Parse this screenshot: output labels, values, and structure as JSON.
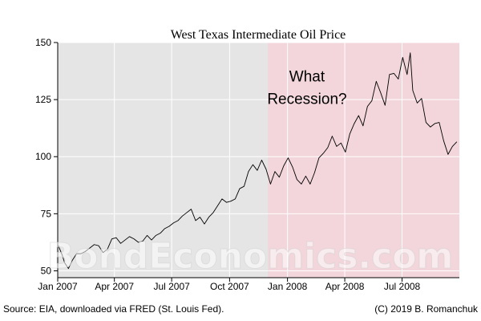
{
  "chart_data": {
    "type": "line",
    "title": "West Texas Intermediate Oil Price",
    "xlabel": "",
    "ylabel": "",
    "x_range": [
      "2007-01-01",
      "2008-09-30"
    ],
    "ylim": [
      47,
      150
    ],
    "y_ticks": [
      50,
      75,
      100,
      125,
      150
    ],
    "x_ticks": [
      {
        "date": "2007-01-01",
        "label": "Jan 2007"
      },
      {
        "date": "2007-04-01",
        "label": "Apr 2007"
      },
      {
        "date": "2007-07-01",
        "label": "Jul 2007"
      },
      {
        "date": "2007-10-01",
        "label": "Oct 2007"
      },
      {
        "date": "2008-01-01",
        "label": "Jan 2008"
      },
      {
        "date": "2008-04-01",
        "label": "Apr 2008"
      },
      {
        "date": "2008-07-01",
        "label": "Jul 2008"
      }
    ],
    "grid": true,
    "background_color": "#e5e5e5",
    "recession_shading": {
      "start": "2007-12-01",
      "end": "2008-09-30",
      "color": "#f2d6db"
    },
    "annotation": {
      "lines": [
        "What",
        "Recession?"
      ],
      "date": "2008-02-01",
      "value": 126
    },
    "series": [
      {
        "color": "#000000",
        "points": [
          [
            "2007-01-02",
            61.0
          ],
          [
            "2007-01-08",
            57.0
          ],
          [
            "2007-01-12",
            53.5
          ],
          [
            "2007-01-18",
            51.0
          ],
          [
            "2007-01-24",
            54.5
          ],
          [
            "2007-01-31",
            57.5
          ],
          [
            "2007-02-07",
            57.5
          ],
          [
            "2007-02-14",
            58.5
          ],
          [
            "2007-02-21",
            60.0
          ],
          [
            "2007-02-28",
            61.5
          ],
          [
            "2007-03-07",
            61.0
          ],
          [
            "2007-03-14",
            58.0
          ],
          [
            "2007-03-21",
            59.5
          ],
          [
            "2007-03-28",
            64.0
          ],
          [
            "2007-04-04",
            64.5
          ],
          [
            "2007-04-11",
            62.0
          ],
          [
            "2007-04-18",
            63.5
          ],
          [
            "2007-04-25",
            65.0
          ],
          [
            "2007-05-02",
            64.0
          ],
          [
            "2007-05-09",
            62.5
          ],
          [
            "2007-05-16",
            63.0
          ],
          [
            "2007-05-23",
            65.5
          ],
          [
            "2007-05-30",
            63.5
          ],
          [
            "2007-06-06",
            65.5
          ],
          [
            "2007-06-13",
            66.5
          ],
          [
            "2007-06-20",
            68.5
          ],
          [
            "2007-06-27",
            69.5
          ],
          [
            "2007-07-04",
            71.0
          ],
          [
            "2007-07-11",
            72.0
          ],
          [
            "2007-07-18",
            74.0
          ],
          [
            "2007-07-25",
            75.5
          ],
          [
            "2007-08-01",
            77.0
          ],
          [
            "2007-08-08",
            72.0
          ],
          [
            "2007-08-15",
            73.5
          ],
          [
            "2007-08-22",
            70.5
          ],
          [
            "2007-08-29",
            73.5
          ],
          [
            "2007-09-05",
            75.5
          ],
          [
            "2007-09-12",
            78.5
          ],
          [
            "2007-09-19",
            81.5
          ],
          [
            "2007-09-26",
            80.0
          ],
          [
            "2007-10-03",
            80.5
          ],
          [
            "2007-10-10",
            81.5
          ],
          [
            "2007-10-17",
            86.0
          ],
          [
            "2007-10-24",
            87.0
          ],
          [
            "2007-10-31",
            93.5
          ],
          [
            "2007-11-07",
            96.5
          ],
          [
            "2007-11-14",
            94.0
          ],
          [
            "2007-11-21",
            98.5
          ],
          [
            "2007-11-28",
            94.5
          ],
          [
            "2007-12-05",
            88.0
          ],
          [
            "2007-12-12",
            93.5
          ],
          [
            "2007-12-19",
            91.0
          ],
          [
            "2007-12-26",
            96.0
          ],
          [
            "2008-01-02",
            99.5
          ],
          [
            "2008-01-09",
            95.5
          ],
          [
            "2008-01-16",
            90.0
          ],
          [
            "2008-01-23",
            88.0
          ],
          [
            "2008-01-30",
            91.5
          ],
          [
            "2008-02-06",
            88.0
          ],
          [
            "2008-02-13",
            93.0
          ],
          [
            "2008-02-20",
            99.5
          ],
          [
            "2008-02-27",
            101.5
          ],
          [
            "2008-03-05",
            104.0
          ],
          [
            "2008-03-12",
            109.0
          ],
          [
            "2008-03-19",
            104.5
          ],
          [
            "2008-03-26",
            106.0
          ],
          [
            "2008-04-02",
            102.0
          ],
          [
            "2008-04-09",
            110.0
          ],
          [
            "2008-04-16",
            114.5
          ],
          [
            "2008-04-23",
            118.0
          ],
          [
            "2008-04-30",
            113.5
          ],
          [
            "2008-05-07",
            122.0
          ],
          [
            "2008-05-14",
            124.5
          ],
          [
            "2008-05-21",
            133.0
          ],
          [
            "2008-05-28",
            128.0
          ],
          [
            "2008-06-04",
            122.5
          ],
          [
            "2008-06-11",
            136.0
          ],
          [
            "2008-06-18",
            136.5
          ],
          [
            "2008-06-25",
            134.0
          ],
          [
            "2008-07-02",
            143.5
          ],
          [
            "2008-07-09",
            136.0
          ],
          [
            "2008-07-14",
            145.5
          ],
          [
            "2008-07-18",
            129.0
          ],
          [
            "2008-07-25",
            123.5
          ],
          [
            "2008-08-01",
            125.5
          ],
          [
            "2008-08-08",
            115.0
          ],
          [
            "2008-08-15",
            113.0
          ],
          [
            "2008-08-22",
            114.5
          ],
          [
            "2008-08-29",
            115.0
          ],
          [
            "2008-09-05",
            107.0
          ],
          [
            "2008-09-12",
            101.0
          ],
          [
            "2008-09-19",
            104.5
          ],
          [
            "2008-09-26",
            106.5
          ]
        ]
      }
    ]
  },
  "footer": {
    "source": "Source: EIA, downloaded via FRED (St. Louis Fed).",
    "copyright": "(C) 2019 B. Romanchuk"
  },
  "watermark": "BondEconomics.com"
}
